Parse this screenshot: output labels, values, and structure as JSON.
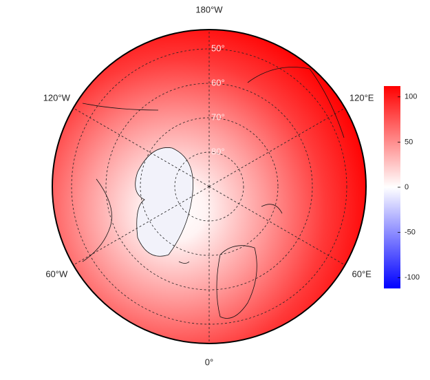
{
  "map": {
    "lon_labels": [
      {
        "value": -180,
        "label": "180°W"
      },
      {
        "value": -120,
        "label": "120°W"
      },
      {
        "value": -60,
        "label": "60°W"
      },
      {
        "value": 0,
        "label": "0°"
      },
      {
        "value": 60,
        "label": "60°E"
      },
      {
        "value": 120,
        "label": "120°E"
      }
    ],
    "lat_labels": [
      {
        "value": 50,
        "label": "50°"
      },
      {
        "value": 60,
        "label": "60°"
      },
      {
        "value": 70,
        "label": "70°"
      },
      {
        "value": 80,
        "label": "80°"
      }
    ],
    "lat_lim": [
      44.4,
      90
    ],
    "colorbar": {
      "colors": [
        "#0000ff",
        "#ffffff",
        "#ff0000"
      ],
      "lim": [
        -112,
        112
      ],
      "ticks": [
        100,
        50,
        0,
        -50,
        -100
      ]
    }
  }
}
